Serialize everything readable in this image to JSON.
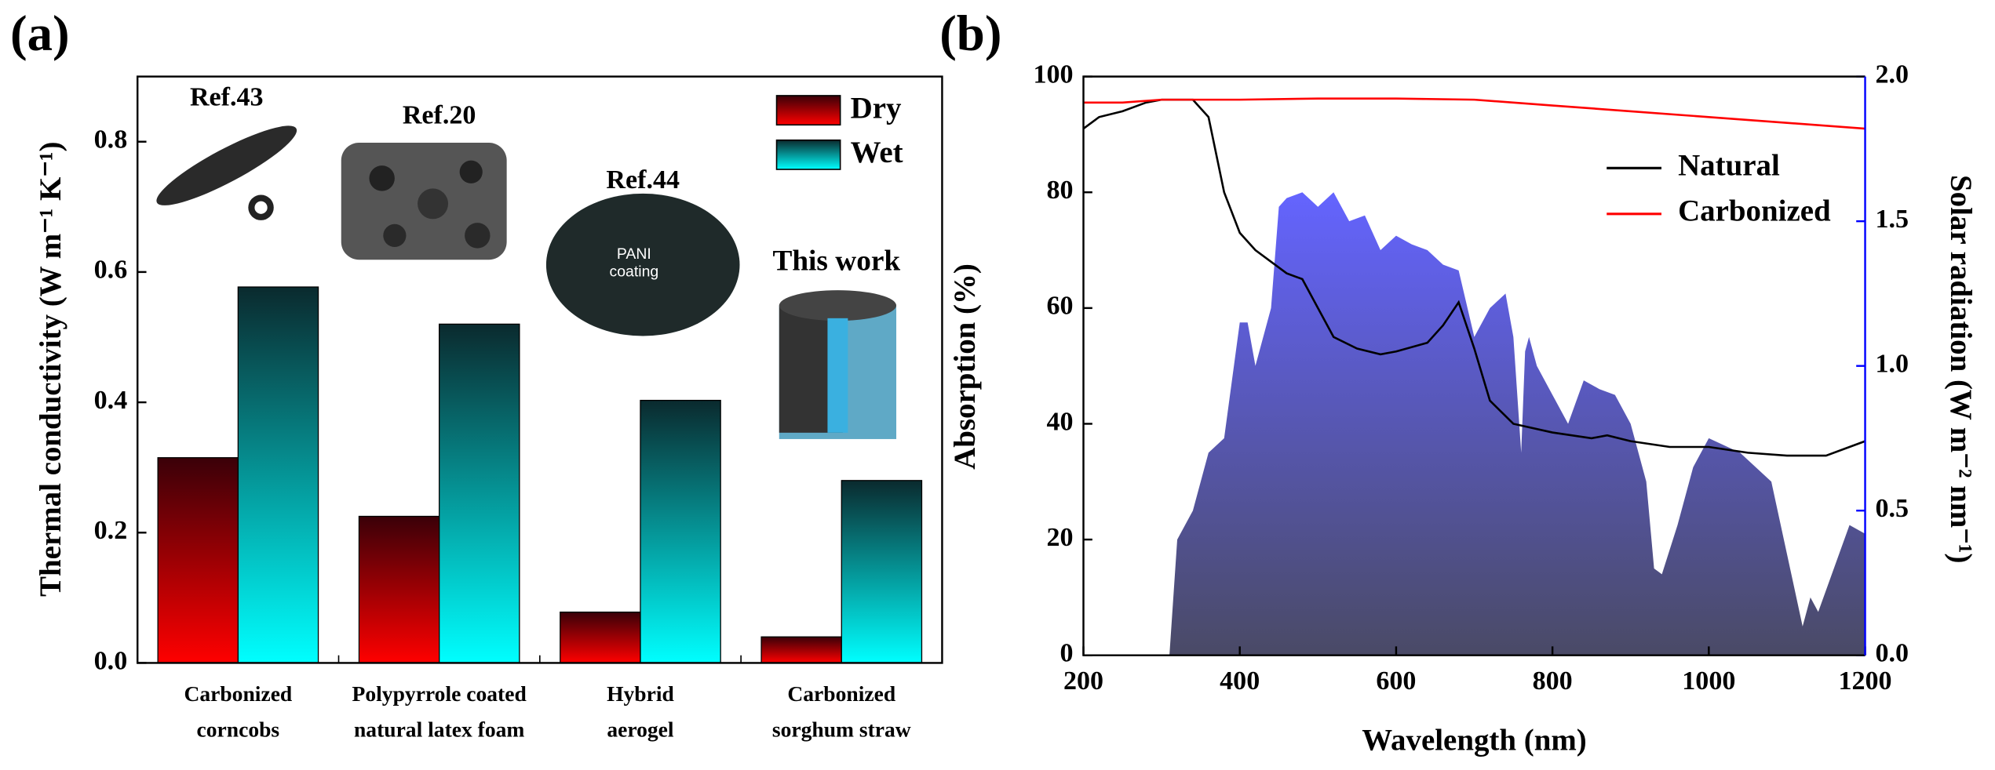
{
  "chart_data": [
    {
      "type": "bar",
      "panel": "(a)",
      "ylabel": "Thermal conductivity (W m⁻¹ K⁻¹)",
      "categories": [
        [
          "Carbonized",
          "corncobs"
        ],
        [
          "Polypyrrole coated",
          "natural latex foam"
        ],
        [
          "Hybrid",
          "aerogel"
        ],
        [
          "Carbonized",
          "sorghum straw"
        ]
      ],
      "series": [
        {
          "name": "Dry",
          "color": "#ff0000",
          "gradient_top": "#3a0008",
          "values": [
            0.315,
            0.225,
            0.078,
            0.04
          ]
        },
        {
          "name": "Wet",
          "color": "#00ffff",
          "gradient_top": "#0a2a2e",
          "values": [
            0.577,
            0.52,
            0.403,
            0.28
          ]
        }
      ],
      "ylim": [
        0,
        0.9
      ],
      "yticks": [
        {
          "value": 0,
          "label": "0.0"
        },
        0.2,
        0.4,
        0.6,
        0.8
      ],
      "legend": "upper right",
      "annotations": [
        "Ref.43",
        "Ref.20",
        "Ref.44",
        "This work"
      ],
      "inset_text": [
        "PANI",
        "coating"
      ]
    },
    {
      "type": "line",
      "panel": "(b)",
      "xlabel": "Wavelength (nm)",
      "ylabel": "Absorption (%)",
      "y2label": "Solar radiation (W m⁻² nm⁻¹)",
      "y2_color": "#0000ff",
      "series": [
        {
          "name": "Natural",
          "color": "#000000",
          "x": [
            200,
            220,
            250,
            280,
            300,
            340,
            360,
            380,
            400,
            420,
            440,
            460,
            480,
            500,
            520,
            550,
            580,
            600,
            640,
            660,
            680,
            700,
            720,
            750,
            800,
            850,
            870,
            900,
            950,
            1000,
            1050,
            1100,
            1150,
            1180,
            1200
          ],
          "values": [
            91,
            93,
            94,
            95.5,
            96,
            96,
            93,
            80,
            73,
            70,
            68,
            66,
            65,
            60,
            55,
            53,
            52,
            52.5,
            54,
            57,
            61,
            53,
            44,
            40,
            38.5,
            37.5,
            38,
            37,
            36,
            36,
            35,
            34.5,
            34.5,
            36,
            37
          ]
        },
        {
          "name": "Carbonized",
          "color": "#ff0000",
          "x": [
            200,
            250,
            300,
            400,
            500,
            600,
            700,
            800,
            850,
            900,
            1000,
            1100,
            1200
          ],
          "values": [
            95.5,
            95.5,
            96,
            96,
            96.2,
            96.2,
            96,
            95,
            94.5,
            94,
            93,
            92,
            91
          ]
        },
        {
          "axis": "y2",
          "fill": true,
          "color": "#6464ff",
          "gradient_bottom": "#4a4a66",
          "x": [
            310,
            320,
            340,
            360,
            380,
            400,
            410,
            420,
            440,
            450,
            460,
            480,
            500,
            520,
            540,
            560,
            580,
            600,
            620,
            640,
            660,
            680,
            700,
            720,
            740,
            750,
            760,
            765,
            770,
            780,
            800,
            820,
            840,
            860,
            880,
            900,
            920,
            930,
            940,
            960,
            980,
            1000,
            1040,
            1080,
            1100,
            1120,
            1130,
            1140,
            1160,
            1180,
            1200
          ],
          "values": [
            0,
            0.4,
            0.5,
            0.7,
            0.75,
            1.15,
            1.15,
            1.0,
            1.2,
            1.55,
            1.58,
            1.6,
            1.55,
            1.6,
            1.5,
            1.52,
            1.4,
            1.45,
            1.42,
            1.4,
            1.35,
            1.33,
            1.1,
            1.2,
            1.25,
            1.1,
            0.7,
            1.05,
            1.1,
            1.0,
            0.9,
            0.8,
            0.95,
            0.92,
            0.9,
            0.8,
            0.6,
            0.3,
            0.28,
            0.45,
            0.65,
            0.75,
            0.7,
            0.6,
            0.35,
            0.1,
            0.2,
            0.15,
            0.3,
            0.45,
            0.42
          ]
        }
      ],
      "xlim": [
        200,
        1200
      ],
      "xticks": [
        200,
        400,
        600,
        800,
        1000,
        1200
      ],
      "ylim": [
        0,
        100
      ],
      "yticks": [
        0,
        20,
        40,
        60,
        80,
        100
      ],
      "y2lim": [
        0,
        2
      ],
      "y2ticks": [
        {
          "value": 0,
          "label": "0.0"
        },
        0.5,
        {
          "value": 1,
          "label": "1.0"
        },
        1.5,
        {
          "value": 2,
          "label": "2.0"
        }
      ],
      "legend": "upper right"
    }
  ]
}
